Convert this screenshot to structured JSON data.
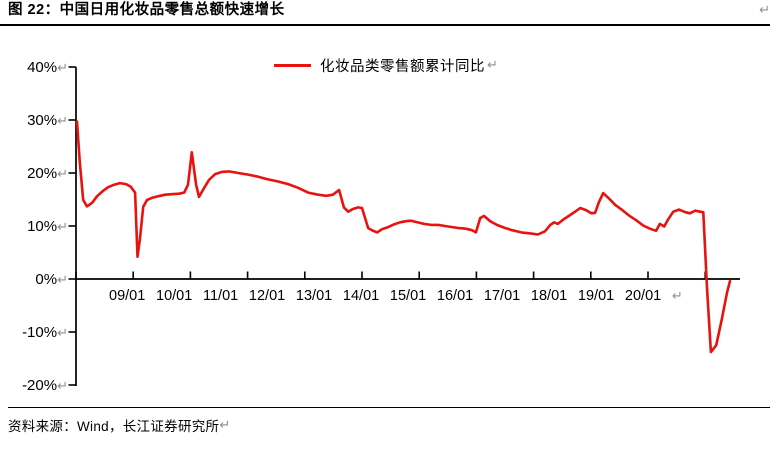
{
  "title": "图  22：中国日用化妆品零售总额快速增长",
  "marks": {
    "return_mark": "↵"
  },
  "footer": {
    "source": "资料来源：Wind，长江证券研究所"
  },
  "chart_data": {
    "type": "line",
    "title": "图 22：中国日用化妆品零售总额快速增长",
    "legend": {
      "label": "化妆品类零售额累计同比",
      "position": "top-center"
    },
    "colors": {
      "series": "#e8120f",
      "axis": "#000000",
      "return_mark": "#8f8f8f"
    },
    "grid": false,
    "x_axis": {
      "tick_labels": [
        "09/01",
        "10/01",
        "11/01",
        "12/01",
        "13/01",
        "14/01",
        "15/01",
        "16/01",
        "17/01",
        "18/01",
        "19/01",
        "20/01"
      ],
      "tick_months": [
        0,
        12,
        24,
        36,
        48,
        60,
        72,
        84,
        96,
        108,
        120,
        132
      ],
      "range_months": [
        0,
        139.3
      ]
    },
    "y_axis": {
      "tick_labels": [
        "40%",
        "30%",
        "20%",
        "10%",
        "0%",
        "-10%",
        "-20%"
      ],
      "tick_values": [
        40,
        30,
        20,
        10,
        0,
        -10,
        -20
      ],
      "range": [
        -20,
        40
      ],
      "unit": "%"
    },
    "series": [
      {
        "name": "化妆品类零售额累计同比",
        "points": [
          [
            0.2,
            29.7
          ],
          [
            0.8,
            22.0
          ],
          [
            1.5,
            14.9
          ],
          [
            2.3,
            13.7
          ],
          [
            3.4,
            14.4
          ],
          [
            4.4,
            15.6
          ],
          [
            5.5,
            16.5
          ],
          [
            6.7,
            17.3
          ],
          [
            8.0,
            17.8
          ],
          [
            9.2,
            18.1
          ],
          [
            10.5,
            17.9
          ],
          [
            11.5,
            17.4
          ],
          [
            12.4,
            16.3
          ],
          [
            12.9,
            4.2
          ],
          [
            13.4,
            7.5
          ],
          [
            14.1,
            13.6
          ],
          [
            14.9,
            14.9
          ],
          [
            15.9,
            15.3
          ],
          [
            17.2,
            15.6
          ],
          [
            18.7,
            15.9
          ],
          [
            20.1,
            16.0
          ],
          [
            21.6,
            16.1
          ],
          [
            22.7,
            16.3
          ],
          [
            23.5,
            17.8
          ],
          [
            24.3,
            23.9
          ],
          [
            25.2,
            17.8
          ],
          [
            25.8,
            15.5
          ],
          [
            26.9,
            17.2
          ],
          [
            27.9,
            18.7
          ],
          [
            29.2,
            19.8
          ],
          [
            30.6,
            20.2
          ],
          [
            32.1,
            20.3
          ],
          [
            34.0,
            20.0
          ],
          [
            36.1,
            19.7
          ],
          [
            38.2,
            19.3
          ],
          [
            40.3,
            18.8
          ],
          [
            42.4,
            18.4
          ],
          [
            44.5,
            17.9
          ],
          [
            46.6,
            17.2
          ],
          [
            48.7,
            16.3
          ],
          [
            50.8,
            15.9
          ],
          [
            52.5,
            15.7
          ],
          [
            53.9,
            15.9
          ],
          [
            55.2,
            16.8
          ],
          [
            56.2,
            13.5
          ],
          [
            57.1,
            12.7
          ],
          [
            58.1,
            13.2
          ],
          [
            59.2,
            13.5
          ],
          [
            60.0,
            13.4
          ],
          [
            61.3,
            9.6
          ],
          [
            62.3,
            9.1
          ],
          [
            63.2,
            8.8
          ],
          [
            64.2,
            9.4
          ],
          [
            65.5,
            9.8
          ],
          [
            66.7,
            10.3
          ],
          [
            68.0,
            10.7
          ],
          [
            69.2,
            10.9
          ],
          [
            70.3,
            11.0
          ],
          [
            71.6,
            10.7
          ],
          [
            73.0,
            10.4
          ],
          [
            74.5,
            10.2
          ],
          [
            76.0,
            10.2
          ],
          [
            77.4,
            10.0
          ],
          [
            78.9,
            9.8
          ],
          [
            80.4,
            9.6
          ],
          [
            81.8,
            9.5
          ],
          [
            83.1,
            9.2
          ],
          [
            83.9,
            8.8
          ],
          [
            84.8,
            11.5
          ],
          [
            85.6,
            11.9
          ],
          [
            86.9,
            10.9
          ],
          [
            88.3,
            10.2
          ],
          [
            89.8,
            9.7
          ],
          [
            91.5,
            9.2
          ],
          [
            93.4,
            8.8
          ],
          [
            95.3,
            8.6
          ],
          [
            96.9,
            8.4
          ],
          [
            98.4,
            9.0
          ],
          [
            99.5,
            10.2
          ],
          [
            100.3,
            10.7
          ],
          [
            101.1,
            10.4
          ],
          [
            102.2,
            11.2
          ],
          [
            103.4,
            11.9
          ],
          [
            104.7,
            12.7
          ],
          [
            105.8,
            13.4
          ],
          [
            107.0,
            13.0
          ],
          [
            108.1,
            12.4
          ],
          [
            108.9,
            12.5
          ],
          [
            109.7,
            14.5
          ],
          [
            110.6,
            16.2
          ],
          [
            111.8,
            15.2
          ],
          [
            113.1,
            14.0
          ],
          [
            114.6,
            13.0
          ],
          [
            116.0,
            12.0
          ],
          [
            117.5,
            11.1
          ],
          [
            119.0,
            10.1
          ],
          [
            120.4,
            9.5
          ],
          [
            121.7,
            9.1
          ],
          [
            122.5,
            10.4
          ],
          [
            123.4,
            9.9
          ],
          [
            124.2,
            11.2
          ],
          [
            125.3,
            12.7
          ],
          [
            126.5,
            13.1
          ],
          [
            127.8,
            12.6
          ],
          [
            128.8,
            12.4
          ],
          [
            129.9,
            12.9
          ],
          [
            130.9,
            12.7
          ],
          [
            131.6,
            12.6
          ],
          [
            132.4,
            -2.0
          ],
          [
            133.2,
            -13.8
          ],
          [
            134.3,
            -12.5
          ],
          [
            135.5,
            -7.5
          ],
          [
            136.6,
            -2.5
          ],
          [
            137.2,
            -0.4
          ]
        ]
      }
    ]
  }
}
